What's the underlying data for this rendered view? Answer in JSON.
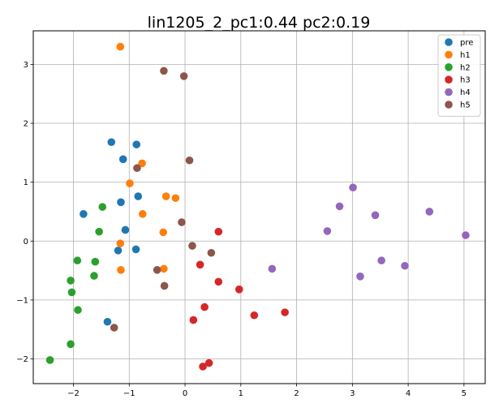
{
  "chart_data": {
    "type": "scatter",
    "title": "lin1205_2_pc1:0.44 pc2:0.19",
    "xlabel": "",
    "ylabel": "",
    "xlim": [
      -2.72,
      5.38
    ],
    "ylim": [
      -2.42,
      3.57
    ],
    "xticks": [
      -2,
      -1,
      0,
      1,
      2,
      3,
      4,
      5
    ],
    "yticks": [
      -2,
      -1,
      0,
      1,
      2,
      3
    ],
    "xtick_labels": [
      "−2",
      "−1",
      "0",
      "1",
      "2",
      "3",
      "4",
      "5"
    ],
    "ytick_labels": [
      "−2",
      "−1",
      "0",
      "1",
      "2",
      "3"
    ],
    "grid": true,
    "legend": "top-right",
    "series": [
      {
        "name": "pre",
        "color": "#1f77b4",
        "points": [
          [
            -1.32,
            1.68
          ],
          [
            -0.87,
            1.64
          ],
          [
            -1.11,
            1.39
          ],
          [
            -0.84,
            0.76
          ],
          [
            -1.15,
            0.66
          ],
          [
            -1.82,
            0.46
          ],
          [
            -1.07,
            0.19
          ],
          [
            -1.2,
            -0.16
          ],
          [
            -0.88,
            -0.14
          ],
          [
            -1.39,
            -1.37
          ]
        ]
      },
      {
        "name": "h1",
        "color": "#ff7f0e",
        "points": [
          [
            -1.16,
            3.3
          ],
          [
            -0.77,
            1.32
          ],
          [
            -0.99,
            0.98
          ],
          [
            -0.34,
            0.76
          ],
          [
            -0.17,
            0.73
          ],
          [
            -0.76,
            0.46
          ],
          [
            -0.39,
            0.15
          ],
          [
            -1.16,
            -0.04
          ],
          [
            -0.38,
            -0.47
          ],
          [
            -1.15,
            -0.49
          ]
        ]
      },
      {
        "name": "h2",
        "color": "#2ca02c",
        "points": [
          [
            -1.48,
            0.58
          ],
          [
            -1.54,
            0.16
          ],
          [
            -1.93,
            -0.33
          ],
          [
            -1.61,
            -0.35
          ],
          [
            -1.63,
            -0.59
          ],
          [
            -2.05,
            -0.67
          ],
          [
            -2.03,
            -0.87
          ],
          [
            -1.92,
            -1.17
          ],
          [
            -2.05,
            -1.75
          ],
          [
            -2.42,
            -2.02
          ]
        ]
      },
      {
        "name": "h3",
        "color": "#d62728",
        "points": [
          [
            0.6,
            0.16
          ],
          [
            0.27,
            -0.4
          ],
          [
            0.6,
            -0.69
          ],
          [
            0.97,
            -0.82
          ],
          [
            0.35,
            -1.12
          ],
          [
            1.24,
            -1.26
          ],
          [
            1.79,
            -1.21
          ],
          [
            0.15,
            -1.34
          ],
          [
            0.43,
            -2.07
          ],
          [
            0.32,
            -2.13
          ]
        ]
      },
      {
        "name": "h4",
        "color": "#9467bd",
        "points": [
          [
            3.01,
            0.91
          ],
          [
            2.77,
            0.59
          ],
          [
            3.41,
            0.44
          ],
          [
            4.38,
            0.5
          ],
          [
            2.55,
            0.17
          ],
          [
            5.03,
            0.1
          ],
          [
            3.52,
            -0.33
          ],
          [
            3.94,
            -0.42
          ],
          [
            1.56,
            -0.47
          ],
          [
            3.14,
            -0.6
          ]
        ]
      },
      {
        "name": "h5",
        "color": "#8c564b",
        "points": [
          [
            -0.38,
            2.89
          ],
          [
            -0.02,
            2.8
          ],
          [
            0.08,
            1.37
          ],
          [
            -0.86,
            1.24
          ],
          [
            -0.06,
            0.32
          ],
          [
            0.13,
            -0.08
          ],
          [
            0.47,
            -0.2
          ],
          [
            -0.5,
            -0.49
          ],
          [
            -0.37,
            -0.76
          ],
          [
            -1.27,
            -1.47
          ]
        ]
      }
    ]
  }
}
